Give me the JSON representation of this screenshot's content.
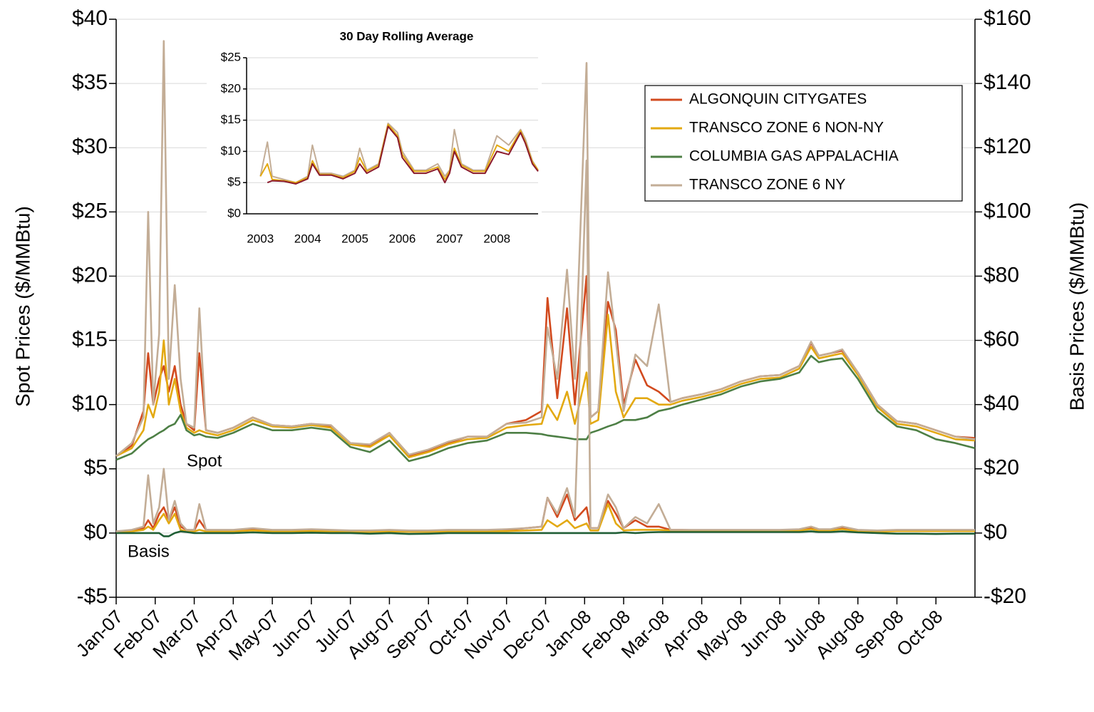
{
  "chart_data": [
    {
      "type": "line",
      "ylabel": "Spot Prices ($/MMBtu)",
      "y2label": "Basis Prices ($/MMBtu)",
      "annotations": [
        "Spot",
        "Basis"
      ],
      "legend": "upper right",
      "grid": true,
      "xlim": [
        0,
        22
      ],
      "xticks": [
        {
          "value": 0,
          "label": "Jan-07"
        },
        {
          "value": 1,
          "label": "Feb-07"
        },
        {
          "value": 2,
          "label": "Mar-07"
        },
        {
          "value": 3,
          "label": "Apr-07"
        },
        {
          "value": 4,
          "label": "May-07"
        },
        {
          "value": 5,
          "label": "Jun-07"
        },
        {
          "value": 6,
          "label": "Jul-07"
        },
        {
          "value": 7,
          "label": "Aug-07"
        },
        {
          "value": 8,
          "label": "Sep-07"
        },
        {
          "value": 9,
          "label": "Oct-07"
        },
        {
          "value": 10,
          "label": "Nov-07"
        },
        {
          "value": 11,
          "label": "Dec-07"
        },
        {
          "value": 12,
          "label": "Jan-08"
        },
        {
          "value": 13,
          "label": "Feb-08"
        },
        {
          "value": 14,
          "label": "Mar-08"
        },
        {
          "value": 15,
          "label": "Apr-08"
        },
        {
          "value": 16,
          "label": "May-08"
        },
        {
          "value": 17,
          "label": "Jun-08"
        },
        {
          "value": 18,
          "label": "Jul-08"
        },
        {
          "value": 19,
          "label": "Aug-08"
        },
        {
          "value": 20,
          "label": "Sep-08"
        },
        {
          "value": 21,
          "label": "Oct-08"
        }
      ],
      "ylim": [
        -5,
        40
      ],
      "yticks": [
        {
          "value": -5,
          "label": "-$5"
        },
        {
          "value": 0,
          "label": "$0"
        },
        {
          "value": 5,
          "label": "$5"
        },
        {
          "value": 10,
          "label": "$10"
        },
        {
          "value": 15,
          "label": "$15"
        },
        {
          "value": 20,
          "label": "$20"
        },
        {
          "value": 25,
          "label": "$25"
        },
        {
          "value": 30,
          "label": "$30"
        },
        {
          "value": 35,
          "label": "$35"
        },
        {
          "value": 40,
          "label": "$40"
        }
      ],
      "y2lim": [
        -20,
        160
      ],
      "y2ticks": [
        {
          "value": -20,
          "label": "-$20"
        },
        {
          "value": 0,
          "label": "$0"
        },
        {
          "value": 20,
          "label": "$20"
        },
        {
          "value": 40,
          "label": "$40"
        },
        {
          "value": 60,
          "label": "$60"
        },
        {
          "value": 80,
          "label": "$80"
        },
        {
          "value": 100,
          "label": "$100"
        },
        {
          "value": 120,
          "label": "$120"
        },
        {
          "value": 140,
          "label": "$140"
        },
        {
          "value": 160,
          "label": "$160"
        }
      ],
      "x": [
        0,
        0.4,
        0.7,
        0.82,
        0.95,
        1.1,
        1.22,
        1.35,
        1.5,
        1.65,
        1.8,
        2.0,
        2.13,
        2.3,
        2.6,
        3,
        3.5,
        4,
        4.5,
        5,
        5.5,
        6,
        6.5,
        7,
        7.5,
        8,
        8.5,
        9,
        9.5,
        10,
        10.5,
        10.9,
        11.05,
        11.3,
        11.55,
        11.75,
        12.05,
        12.15,
        12.35,
        12.6,
        12.8,
        13.0,
        13.3,
        13.6,
        13.9,
        14.2,
        14.5,
        15,
        15.5,
        16,
        16.5,
        17,
        17.5,
        17.8,
        18,
        18.3,
        18.6,
        19,
        19.5,
        20,
        20.5,
        21,
        21.5,
        22
      ],
      "series": [
        {
          "name": "ALGONQUIN CITYGATES",
          "color": "#d24a1e",
          "values": [
            6.0,
            6.8,
            9.5,
            14.0,
            10.0,
            12.0,
            13.0,
            11.0,
            13.0,
            10.0,
            8.5,
            8.0,
            14.0,
            8.0,
            7.8,
            8.2,
            9.0,
            8.4,
            8.3,
            8.5,
            8.3,
            7.0,
            6.8,
            7.8,
            6.0,
            6.4,
            7.0,
            7.5,
            7.5,
            8.5,
            8.8,
            9.5,
            18.3,
            10.5,
            17.5,
            10.0,
            20.0,
            9.0,
            9.5,
            18.0,
            15.8,
            10.0,
            13.5,
            11.5,
            11.0,
            10.2,
            10.5,
            10.8,
            11.2,
            11.8,
            12.2,
            12.3,
            13.0,
            14.8,
            13.8,
            14.0,
            14.2,
            12.5,
            10.0,
            8.7,
            8.5,
            8.0,
            7.5,
            7.4
          ]
        },
        {
          "name": "TRANSCO ZONE 6 NON-NY",
          "color": "#e3a912",
          "values": [
            6.0,
            6.6,
            8.0,
            10.0,
            9.0,
            11.0,
            15.0,
            10.0,
            12.0,
            9.5,
            8.2,
            7.8,
            8.0,
            7.8,
            7.6,
            8.0,
            8.8,
            8.3,
            8.2,
            8.4,
            8.2,
            6.9,
            6.7,
            7.6,
            5.9,
            6.3,
            6.9,
            7.3,
            7.4,
            8.2,
            8.4,
            8.5,
            10.0,
            8.8,
            11.0,
            8.5,
            12.5,
            8.5,
            8.8,
            17.0,
            11.0,
            9.0,
            10.5,
            10.5,
            10.0,
            10.0,
            10.3,
            10.6,
            11.0,
            11.6,
            12.0,
            12.1,
            12.8,
            14.5,
            13.6,
            13.8,
            14.0,
            12.3,
            9.8,
            8.5,
            8.3,
            7.8,
            7.3,
            7.2
          ]
        },
        {
          "name": "COLUMBIA GAS APPALACHIA",
          "color": "#4d7f45",
          "values": [
            5.7,
            6.2,
            7.0,
            7.3,
            7.5,
            7.8,
            8.0,
            8.3,
            8.5,
            9.2,
            8.0,
            7.6,
            7.7,
            7.5,
            7.4,
            7.8,
            8.5,
            8.0,
            8.0,
            8.2,
            8.0,
            6.7,
            6.3,
            7.2,
            5.6,
            6.0,
            6.6,
            7.0,
            7.2,
            7.8,
            7.8,
            7.7,
            7.6,
            7.5,
            7.4,
            7.3,
            7.3,
            7.8,
            8.0,
            8.3,
            8.5,
            8.8,
            8.8,
            9.0,
            9.5,
            9.7,
            10.0,
            10.4,
            10.8,
            11.4,
            11.8,
            12.0,
            12.5,
            13.8,
            13.3,
            13.5,
            13.6,
            12.0,
            9.5,
            8.3,
            8.0,
            7.3,
            7.0,
            6.6
          ]
        },
        {
          "name": "TRANSCO ZONE 6 NY",
          "color": "#c3ad96",
          "values": [
            6.0,
            7.0,
            9.0,
            25.0,
            10.0,
            15.5,
            38.3,
            12.0,
            19.3,
            12.0,
            8.5,
            8.2,
            17.5,
            8.0,
            7.8,
            8.2,
            9.0,
            8.4,
            8.3,
            8.5,
            8.4,
            7.0,
            6.9,
            7.8,
            6.1,
            6.5,
            7.1,
            7.5,
            7.5,
            8.5,
            8.6,
            9.0,
            16.0,
            12.0,
            20.5,
            12.0,
            36.6,
            9.0,
            9.5,
            20.3,
            15.0,
            9.5,
            13.9,
            13.0,
            17.8,
            10.2,
            10.5,
            10.8,
            11.2,
            11.8,
            12.2,
            12.3,
            13.0,
            14.9,
            13.8,
            14.0,
            14.3,
            12.5,
            10.0,
            8.7,
            8.5,
            8.0,
            7.5,
            7.3
          ]
        },
        {
          "axis": "y2",
          "color": "#d24a1e",
          "values": [
            0.5,
            0.8,
            1.5,
            4,
            1.5,
            6,
            8,
            4,
            8,
            2,
            1,
            0.8,
            4,
            1,
            0.8,
            0.8,
            1.2,
            0.8,
            0.8,
            1,
            0.8,
            0.6,
            0.6,
            0.8,
            0.6,
            0.6,
            0.8,
            0.8,
            0.8,
            1,
            1.5,
            2,
            11,
            5,
            12,
            4,
            8,
            1.5,
            1.5,
            10,
            6,
            1.5,
            4,
            2,
            2,
            1,
            1,
            0.8,
            0.8,
            0.8,
            0.8,
            0.8,
            1,
            1.5,
            1,
            1,
            1.5,
            0.8,
            0.6,
            0.8,
            0.8,
            0.8,
            0.8,
            0.8
          ]
        },
        {
          "axis": "y2",
          "color": "#e3a912",
          "values": [
            0.3,
            0.5,
            1,
            2,
            1,
            4,
            6,
            3,
            6,
            1,
            0.5,
            0.5,
            1,
            0.5,
            0.5,
            0.5,
            0.8,
            0.5,
            0.5,
            0.6,
            0.5,
            0.4,
            0.4,
            0.5,
            0.4,
            0.4,
            0.5,
            0.5,
            0.5,
            0.6,
            0.8,
            1,
            4,
            2,
            4,
            1.5,
            3,
            0.8,
            0.8,
            9,
            3,
            0.8,
            1,
            1,
            1,
            0.8,
            0.8,
            0.6,
            0.6,
            0.6,
            0.6,
            0.6,
            0.8,
            1.2,
            0.8,
            0.8,
            1.2,
            0.6,
            0.4,
            0.6,
            0.6,
            0.6,
            0.6,
            0.6
          ]
        },
        {
          "axis": "y2",
          "color": "#1f5e35",
          "values": [
            0,
            0,
            0,
            0,
            0,
            0,
            -1,
            -1,
            0,
            0.5,
            0.3,
            0,
            0,
            0,
            0,
            0,
            0.2,
            0,
            0,
            0.1,
            0,
            0,
            -0.2,
            0,
            -0.3,
            -0.2,
            0,
            0,
            0,
            0,
            0,
            0,
            0,
            0,
            0,
            0,
            0,
            0,
            0,
            0,
            0,
            0.2,
            0,
            0.2,
            0.3,
            0.3,
            0.3,
            0.3,
            0.3,
            0.3,
            0.3,
            0.3,
            0.3,
            0.5,
            0.3,
            0.3,
            0.5,
            0.2,
            0,
            -0.2,
            -0.2,
            -0.3,
            -0.2,
            -0.2
          ]
        },
        {
          "axis": "y2",
          "color": "#c3ad96",
          "values": [
            0.5,
            1,
            2,
            18,
            3,
            8,
            20,
            4,
            10,
            3,
            1,
            1,
            9,
            1,
            1,
            1,
            1.5,
            1,
            1,
            1.2,
            1,
            0.8,
            0.8,
            1,
            0.8,
            0.8,
            1,
            1,
            1,
            1.2,
            1.5,
            2,
            11,
            6,
            14,
            5,
            116,
            1.5,
            1.5,
            12,
            8,
            1.5,
            5,
            3,
            9,
            1,
            1,
            1,
            1,
            1,
            1,
            1,
            1.2,
            2,
            1.2,
            1.2,
            2,
            1,
            0.8,
            1,
            1,
            1,
            1,
            1
          ]
        }
      ]
    },
    {
      "type": "line",
      "title": "30 Day Rolling Average",
      "grid": true,
      "xlim": [
        2002.71,
        2008.87
      ],
      "xticks": [
        2003,
        2004,
        2005,
        2006,
        2007,
        2008
      ],
      "ylim": [
        0,
        25
      ],
      "yticks": [
        {
          "value": 0,
          "label": "$0"
        },
        {
          "value": 5,
          "label": "$5"
        },
        {
          "value": 10,
          "label": "$10"
        },
        {
          "value": 15,
          "label": "$15"
        },
        {
          "value": 20,
          "label": "$20"
        },
        {
          "value": 25,
          "label": "$25"
        }
      ],
      "x": [
        2003.0,
        2003.15,
        2003.25,
        2003.5,
        2003.75,
        2004.0,
        2004.1,
        2004.25,
        2004.5,
        2004.75,
        2005.0,
        2005.1,
        2005.25,
        2005.5,
        2005.7,
        2005.9,
        2006.0,
        2006.25,
        2006.5,
        2006.75,
        2006.9,
        2007.0,
        2007.1,
        2007.25,
        2007.5,
        2007.75,
        2008.0,
        2008.25,
        2008.5,
        2008.6,
        2008.75,
        2008.87
      ],
      "series": [
        {
          "color": "#c3ad96",
          "values": [
            6,
            11.5,
            6,
            5.5,
            5,
            6,
            11,
            6.5,
            6.5,
            6,
            7,
            10.5,
            7,
            8,
            14.5,
            13,
            10,
            7,
            7,
            8,
            6,
            7,
            13.5,
            8,
            7,
            7,
            12.5,
            11,
            13.5,
            12,
            8.5,
            7
          ]
        },
        {
          "color": "#e3a912",
          "values": [
            6,
            8,
            5.5,
            5.3,
            5,
            5.8,
            8.5,
            6.3,
            6.3,
            5.8,
            6.8,
            9,
            6.8,
            7.8,
            14.3,
            12.5,
            9.5,
            6.8,
            6.8,
            7.5,
            5.5,
            6.8,
            10.5,
            7.8,
            6.8,
            6.8,
            11,
            10,
            13.3,
            11.5,
            8.3,
            7
          ]
        },
        {
          "color": "#8b1a2b",
          "values": [
            null,
            5,
            5.3,
            5.2,
            4.8,
            5.6,
            8,
            6.2,
            6.2,
            5.6,
            6.5,
            8,
            6.5,
            7.5,
            14,
            12.2,
            9,
            6.5,
            6.5,
            7.2,
            5,
            6.5,
            10,
            7.5,
            6.5,
            6.5,
            10,
            9.5,
            13,
            11.3,
            8,
            6.8
          ]
        }
      ]
    }
  ]
}
